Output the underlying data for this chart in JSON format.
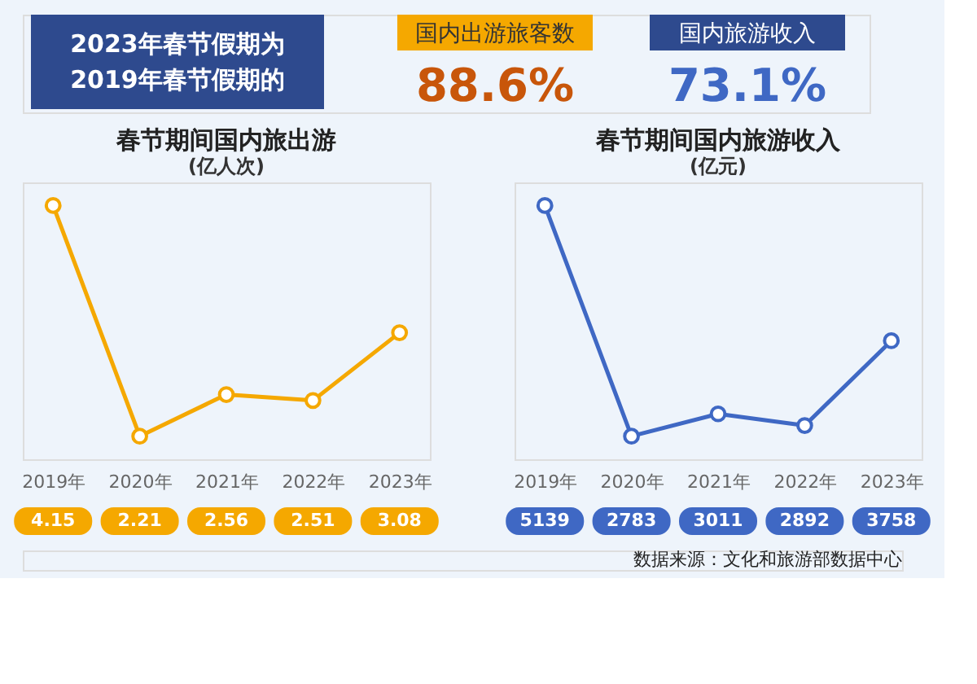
{
  "chart_data": [
    {
      "type": "line",
      "title": "春节期间国内旅出游",
      "ylabel": "(亿人次)",
      "categories": [
        "2019年",
        "2020年",
        "2021年",
        "2022年",
        "2023年"
      ],
      "series": [
        {
          "color": "#f5a800",
          "values": [
            4.15,
            2.21,
            2.56,
            2.51,
            3.08
          ]
        }
      ],
      "data_labels": true,
      "marker": "circle",
      "line_style": "solid",
      "grid": false,
      "annotations": [
        "2023年春节假期为",
        "2019年春节假期的",
        "国内出游旅客数",
        "88.6%",
        "国内旅游收入",
        "73.1%"
      ]
    },
    {
      "type": "line",
      "title": "春节期间国内旅游收入",
      "ylabel": "(亿元)",
      "categories": [
        "2019年",
        "2020年",
        "2021年",
        "2022年",
        "2023年"
      ],
      "series": [
        {
          "color": "#3f68c4",
          "values": [
            5139,
            2783,
            3011,
            2892,
            3758
          ]
        }
      ],
      "data_labels": true,
      "marker": "circle",
      "line_style": "solid",
      "grid": false,
      "annotations": [
        "数据来源：文化和旅游部数据中心"
      ]
    }
  ]
}
